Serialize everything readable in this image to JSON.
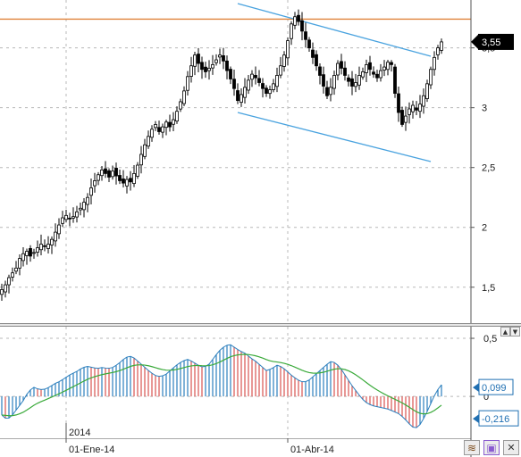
{
  "chart_data": [
    {
      "type": "candlestick",
      "title": "",
      "y_ticks": [
        "3,5",
        "3",
        "2,5",
        "2",
        "1,5"
      ],
      "y_tick_values": [
        3.5,
        3.0,
        2.5,
        2.0,
        1.5
      ],
      "ylim": [
        1.2,
        3.9
      ],
      "x_ticks": [
        {
          "label": "01-Ene-14",
          "bar": 18
        },
        {
          "label": "01-Abr-14",
          "bar": 80
        }
      ],
      "year_label": {
        "label": "2014",
        "bar": 18
      },
      "last_price_label": "3,55",
      "last_price": 3.55,
      "resistance_level": 3.74,
      "grid": true,
      "trendlines": [
        {
          "name": "upper channel",
          "from": {
            "bar": 66,
            "y": 3.87
          },
          "to": {
            "bar": 120,
            "y": 3.43
          }
        },
        {
          "name": "lower channel",
          "from": {
            "bar": 66,
            "y": 2.96
          },
          "to": {
            "bar": 120,
            "y": 2.55
          }
        }
      ],
      "closes": [
        1.48,
        1.52,
        1.58,
        1.62,
        1.66,
        1.74,
        1.78,
        1.8,
        1.76,
        1.79,
        1.83,
        1.86,
        1.84,
        1.86,
        1.9,
        1.96,
        2.02,
        2.08,
        2.1,
        2.07,
        2.09,
        2.13,
        2.16,
        2.21,
        2.25,
        2.33,
        2.39,
        2.44,
        2.48,
        2.45,
        2.42,
        2.47,
        2.43,
        2.39,
        2.37,
        2.4,
        2.38,
        2.45,
        2.52,
        2.61,
        2.69,
        2.76,
        2.82,
        2.86,
        2.8,
        2.84,
        2.88,
        2.84,
        2.9,
        2.97,
        3.05,
        3.14,
        3.26,
        3.35,
        3.44,
        3.37,
        3.32,
        3.3,
        3.33,
        3.36,
        3.4,
        3.44,
        3.39,
        3.31,
        3.24,
        3.16,
        3.06,
        3.11,
        3.17,
        3.23,
        3.28,
        3.25,
        3.21,
        3.16,
        3.12,
        3.15,
        3.2,
        3.27,
        3.35,
        3.44,
        3.56,
        3.7,
        3.76,
        3.72,
        3.64,
        3.57,
        3.5,
        3.42,
        3.35,
        3.27,
        3.18,
        3.1,
        3.17,
        3.27,
        3.37,
        3.33,
        3.27,
        3.22,
        3.18,
        3.21,
        3.27,
        3.3,
        3.36,
        3.32,
        3.28,
        3.25,
        3.31,
        3.34,
        3.38,
        3.36,
        3.12,
        2.96,
        2.86,
        2.93,
        2.99,
        3.02,
        2.98,
        3.03,
        3.1,
        3.2,
        3.32,
        3.42,
        3.5,
        3.55
      ]
    },
    {
      "type": "macd",
      "y_ticks": [
        "0,5",
        "0"
      ],
      "y_tick_values": [
        0.5,
        0.0
      ],
      "ylim": [
        -0.36,
        0.6
      ],
      "macd_label": "0,099",
      "signal_label": "-0,216",
      "grid": true,
      "macd": [
        -0.16,
        -0.2,
        -0.16,
        -0.1,
        -0.04,
        0.04,
        0.08,
        0.06,
        0.06,
        0.08,
        0.11,
        0.13,
        0.16,
        0.19,
        0.21,
        0.24,
        0.26,
        0.25,
        0.24,
        0.25,
        0.24,
        0.25,
        0.28,
        0.32,
        0.35,
        0.33,
        0.29,
        0.25,
        0.21,
        0.18,
        0.17,
        0.19,
        0.23,
        0.27,
        0.3,
        0.32,
        0.3,
        0.27,
        0.25,
        0.27,
        0.33,
        0.39,
        0.43,
        0.45,
        0.42,
        0.39,
        0.37,
        0.33,
        0.3,
        0.26,
        0.22,
        0.24,
        0.27,
        0.25,
        0.21,
        0.17,
        0.14,
        0.12,
        0.14,
        0.18,
        0.22,
        0.26,
        0.3,
        0.29,
        0.24,
        0.17,
        0.1,
        0.04,
        -0.02,
        -0.06,
        -0.08,
        -0.09,
        -0.1,
        -0.11,
        -0.13,
        -0.15,
        -0.19,
        -0.24,
        -0.28,
        -0.24,
        -0.16,
        -0.06,
        0.04,
        0.1
      ]
    }
  ],
  "icons": [
    {
      "name": "up-arrow-icon",
      "glyph": "▲"
    },
    {
      "name": "down-arrow-icon",
      "glyph": "▼"
    },
    {
      "name": "layers-icon",
      "glyph": "≋"
    },
    {
      "name": "save-icon",
      "glyph": "▣"
    },
    {
      "name": "close-icon",
      "glyph": "✕"
    }
  ],
  "colors": {
    "candle": "#000000",
    "grid": "#b8b8b8",
    "resistance": "#e0823a",
    "channel": "#4aa3df",
    "hist_up": "#2c7fbd",
    "hist_down": "#d9534f",
    "signal": "#3aaa3a",
    "badge_price_bg": "#000000",
    "badge_macd_bg": "#1f6fb2",
    "badge_signal_bg": "#1f6fb2",
    "scrollbar_btn": "#f1f1f1",
    "save_accent": "#8a5bd0"
  }
}
